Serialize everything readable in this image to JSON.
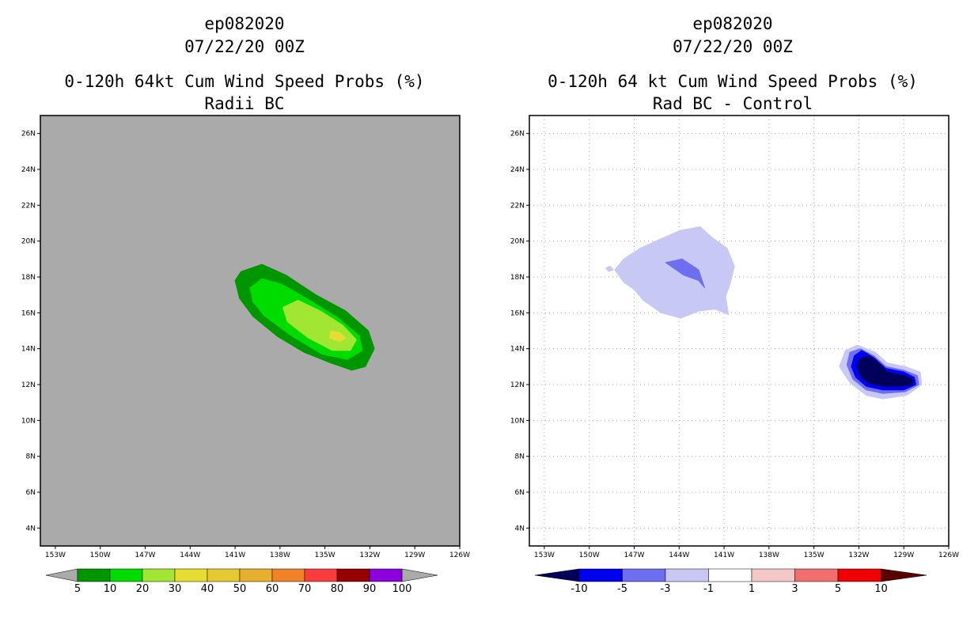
{
  "chart_data": [
    {
      "type": "heatmap",
      "storm_id": "ep082020",
      "datetime": "07/22/20 00Z",
      "title": "0-120h 64kt Cum Wind Speed Probs (%)",
      "subtitle": "Radii BC",
      "x_ticks": [
        "153W",
        "150W",
        "147W",
        "144W",
        "141W",
        "138W",
        "135W",
        "132W",
        "129W",
        "126W"
      ],
      "y_ticks": [
        "4N",
        "6N",
        "8N",
        "10N",
        "12N",
        "14N",
        "16N",
        "18N",
        "20N",
        "22N",
        "24N",
        "26N"
      ],
      "xlim": [
        -154,
        -126
      ],
      "ylim": [
        3,
        27
      ],
      "background": "#aaaaaa",
      "grid": false,
      "colorbar": {
        "labels": [
          "5",
          "10",
          "20",
          "30",
          "40",
          "50",
          "60",
          "70",
          "80",
          "90",
          "100"
        ],
        "colors": [
          "#009600",
          "#00dc00",
          "#a0e632",
          "#e6dc32",
          "#e6c832",
          "#e6af2d",
          "#f08228",
          "#fa3c3c",
          "#960000",
          "#8c00dc"
        ],
        "end_colors": [
          "#aaaaaa",
          "#aaaaaa"
        ]
      },
      "contours": [
        {
          "level": 5,
          "color": "#009600",
          "points": [
            [
              -141.0,
              17.8
            ],
            [
              -140.6,
              18.3
            ],
            [
              -139.2,
              18.7
            ],
            [
              -137.6,
              18.1
            ],
            [
              -135.6,
              17.0
            ],
            [
              -133.6,
              16.1
            ],
            [
              -132.1,
              15.0
            ],
            [
              -131.7,
              14.0
            ],
            [
              -132.3,
              13.0
            ],
            [
              -133.2,
              12.8
            ],
            [
              -134.6,
              13.2
            ],
            [
              -136.4,
              13.8
            ],
            [
              -138.2,
              14.7
            ],
            [
              -139.8,
              15.8
            ],
            [
              -140.7,
              16.8
            ]
          ]
        },
        {
          "level": 10,
          "color": "#00dc00",
          "points": [
            [
              -140.0,
              17.4
            ],
            [
              -139.2,
              17.9
            ],
            [
              -137.9,
              17.6
            ],
            [
              -136.0,
              16.7
            ],
            [
              -134.1,
              15.7
            ],
            [
              -132.7,
              14.7
            ],
            [
              -132.5,
              13.9
            ],
            [
              -133.5,
              13.4
            ],
            [
              -135.2,
              13.7
            ],
            [
              -137.2,
              14.7
            ],
            [
              -139.0,
              15.8
            ],
            [
              -139.8,
              16.6
            ]
          ]
        },
        {
          "level": 20,
          "color": "#a0e632",
          "points": [
            [
              -137.8,
              16.3
            ],
            [
              -136.8,
              16.7
            ],
            [
              -135.3,
              16.1
            ],
            [
              -133.8,
              15.3
            ],
            [
              -132.9,
              14.5
            ],
            [
              -133.3,
              13.9
            ],
            [
              -134.5,
              13.9
            ],
            [
              -136.1,
              14.6
            ],
            [
              -137.5,
              15.5
            ]
          ]
        },
        {
          "level": 30,
          "color": "#e6dc32",
          "points": [
            [
              -134.6,
              15.0
            ],
            [
              -134.0,
              14.9
            ],
            [
              -133.6,
              14.6
            ],
            [
              -134.0,
              14.4
            ],
            [
              -134.7,
              14.6
            ]
          ]
        }
      ]
    },
    {
      "type": "heatmap",
      "storm_id": "ep082020",
      "datetime": "07/22/20 00Z",
      "title": "0-120h 64 kt Cum Wind Speed Probs (%)",
      "subtitle": "Rad BC - Control",
      "x_ticks": [
        "153W",
        "150W",
        "147W",
        "144W",
        "141W",
        "138W",
        "135W",
        "132W",
        "129W",
        "126W"
      ],
      "y_ticks": [
        "4N",
        "6N",
        "8N",
        "10N",
        "12N",
        "14N",
        "16N",
        "18N",
        "20N",
        "22N",
        "24N",
        "26N"
      ],
      "xlim": [
        -154,
        -126
      ],
      "ylim": [
        3,
        27
      ],
      "background": "#ffffff",
      "grid": true,
      "colorbar": {
        "labels": [
          "-10",
          "-5",
          "-3",
          "-1",
          "1",
          "3",
          "5",
          "10"
        ],
        "colors": [
          "#0000f0",
          "#6e6ef0",
          "#c8c8f5",
          "#ffffff",
          "#f5c8c8",
          "#f06e6e",
          "#f00000"
        ],
        "end_colors": [
          "#00005a",
          "#5a0000"
        ]
      },
      "contours": [
        {
          "level": -1,
          "color": "#c8c8f5",
          "points": [
            [
              -148.3,
              18.4
            ],
            [
              -147.7,
              19.0
            ],
            [
              -146.6,
              19.6
            ],
            [
              -145.3,
              20.1
            ],
            [
              -143.9,
              20.6
            ],
            [
              -142.6,
              20.8
            ],
            [
              -141.8,
              20.2
            ],
            [
              -140.8,
              19.6
            ],
            [
              -140.3,
              18.6
            ],
            [
              -140.6,
              17.6
            ],
            [
              -140.9,
              16.9
            ],
            [
              -140.7,
              15.9
            ],
            [
              -141.6,
              16.2
            ],
            [
              -142.7,
              16.1
            ],
            [
              -143.9,
              15.7
            ],
            [
              -145.2,
              16.0
            ],
            [
              -146.4,
              16.7
            ],
            [
              -147.0,
              17.3
            ],
            [
              -147.7,
              17.7
            ]
          ]
        },
        {
          "level": -1,
          "color": "#c8c8f5",
          "points": [
            [
              -148.9,
              18.5
            ],
            [
              -148.6,
              18.6
            ],
            [
              -148.4,
              18.4
            ],
            [
              -148.7,
              18.3
            ]
          ]
        },
        {
          "level": -1,
          "color": "#c8c8f5",
          "points": [
            [
              -132.9,
              13.9
            ],
            [
              -132.1,
              14.2
            ],
            [
              -130.9,
              13.8
            ],
            [
              -130.1,
              13.2
            ],
            [
              -128.9,
              13.0
            ],
            [
              -127.9,
              12.7
            ],
            [
              -127.8,
              12.0
            ],
            [
              -128.8,
              11.4
            ],
            [
              -130.4,
              11.2
            ],
            [
              -131.5,
              11.4
            ],
            [
              -132.6,
              12.1
            ],
            [
              -133.3,
              13.0
            ]
          ]
        },
        {
          "level": -3,
          "color": "#6e6ef0",
          "points": [
            [
              -132.6,
              13.8
            ],
            [
              -131.9,
              14.0
            ],
            [
              -131.0,
              13.6
            ],
            [
              -130.2,
              13.0
            ],
            [
              -129.0,
              12.8
            ],
            [
              -128.1,
              12.5
            ],
            [
              -128.0,
              12.0
            ],
            [
              -128.9,
              11.6
            ],
            [
              -130.4,
              11.5
            ],
            [
              -131.5,
              11.7
            ],
            [
              -132.4,
              12.3
            ],
            [
              -132.8,
              13.1
            ]
          ]
        },
        {
          "level": -3,
          "color": "#6e6ef0",
          "points": [
            [
              -144.9,
              18.8
            ],
            [
              -143.8,
              19.0
            ],
            [
              -142.7,
              18.4
            ],
            [
              -142.3,
              17.4
            ],
            [
              -142.7,
              17.8
            ],
            [
              -143.7,
              18.1
            ]
          ]
        },
        {
          "level": -5,
          "color": "#0000f0",
          "points": [
            [
              -132.3,
              13.6
            ],
            [
              -131.8,
              13.9
            ],
            [
              -131.0,
              13.5
            ],
            [
              -130.2,
              12.9
            ],
            [
              -129.0,
              12.7
            ],
            [
              -128.3,
              12.4
            ],
            [
              -128.2,
              12.0
            ],
            [
              -129.0,
              11.7
            ],
            [
              -130.4,
              11.7
            ],
            [
              -131.5,
              11.9
            ],
            [
              -132.2,
              12.4
            ],
            [
              -132.5,
              13.0
            ]
          ]
        },
        {
          "level": -10,
          "color": "#00005a",
          "points": [
            [
              -132.0,
              13.4
            ],
            [
              -131.4,
              13.6
            ],
            [
              -130.8,
              13.3
            ],
            [
              -130.1,
              12.7
            ],
            [
              -129.0,
              12.5
            ],
            [
              -128.4,
              12.3
            ],
            [
              -128.4,
              12.0
            ],
            [
              -129.2,
              11.9
            ],
            [
              -130.4,
              11.9
            ],
            [
              -131.4,
              12.1
            ],
            [
              -131.9,
              12.5
            ],
            [
              -132.1,
              13.0
            ]
          ]
        }
      ]
    }
  ]
}
